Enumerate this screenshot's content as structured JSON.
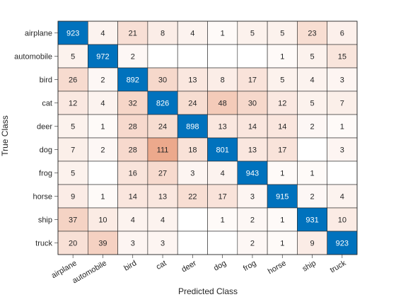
{
  "chart_data": {
    "type": "heatmap",
    "title": "",
    "xlabel": "Predicted Class",
    "ylabel": "True Class",
    "categories": [
      "airplane",
      "automobile",
      "bird",
      "cat",
      "deer",
      "dog",
      "frog",
      "horse",
      "ship",
      "truck"
    ],
    "values": [
      [
        923,
        4,
        21,
        8,
        4,
        1,
        5,
        5,
        23,
        6
      ],
      [
        5,
        972,
        2,
        null,
        null,
        null,
        null,
        1,
        5,
        15
      ],
      [
        26,
        2,
        892,
        30,
        13,
        8,
        17,
        5,
        4,
        3
      ],
      [
        12,
        4,
        32,
        826,
        24,
        48,
        30,
        12,
        5,
        7
      ],
      [
        5,
        1,
        28,
        24,
        898,
        13,
        14,
        14,
        2,
        1
      ],
      [
        7,
        2,
        28,
        111,
        18,
        801,
        13,
        17,
        null,
        3
      ],
      [
        5,
        null,
        16,
        27,
        3,
        4,
        943,
        1,
        1,
        null
      ],
      [
        9,
        1,
        14,
        13,
        22,
        17,
        3,
        915,
        2,
        4
      ],
      [
        37,
        10,
        4,
        4,
        null,
        1,
        2,
        1,
        931,
        10
      ],
      [
        20,
        39,
        3,
        3,
        null,
        null,
        2,
        1,
        9,
        923
      ]
    ],
    "colors": {
      "diagonal": "#0072BD",
      "diagonal_text": "#ffffff",
      "off_diagonal_max": "#D95319",
      "off_diagonal_text": "#262626",
      "grid": "#262626"
    }
  }
}
